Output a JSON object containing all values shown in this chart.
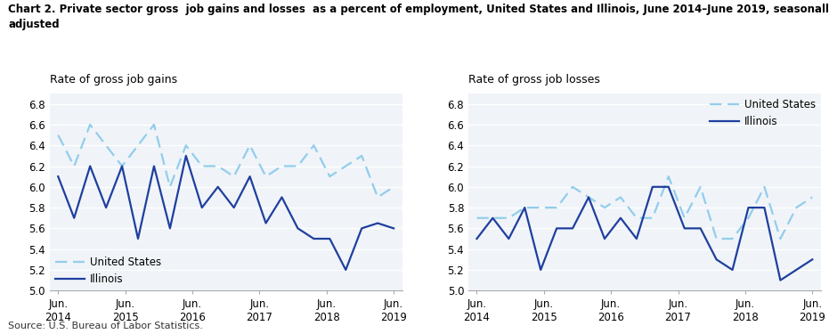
{
  "title_line1": "Chart 2. Private sector gross  job gains and losses  as a percent of employment, United States and Illinois, June 2014–June 2019, seasonally",
  "title_line2": "adjusted",
  "subtitle_left": "Rate of gross job gains",
  "subtitle_right": "Rate of gross job losses",
  "source": "Source: U.S. Bureau of Labor Statistics.",
  "x_labels": [
    "Jun.\n2014",
    "Jun.\n2015",
    "Jun.\n2016",
    "Jun.\n2017",
    "Jun.\n2018",
    "Jun.\n2019"
  ],
  "x_positions": [
    0,
    4,
    8,
    12,
    16,
    20
  ],
  "ylim": [
    5.0,
    6.9
  ],
  "yticks": [
    5.0,
    5.2,
    5.4,
    5.6,
    5.8,
    6.0,
    6.2,
    6.4,
    6.6,
    6.8
  ],
  "gains_us": [
    6.5,
    6.2,
    6.6,
    6.4,
    6.2,
    6.4,
    6.6,
    6.0,
    6.4,
    6.2,
    6.2,
    6.1,
    6.4,
    6.1,
    6.2,
    6.2,
    6.4,
    6.1,
    6.2,
    6.3,
    5.9,
    6.0
  ],
  "gains_il": [
    6.1,
    5.7,
    6.2,
    5.8,
    6.2,
    5.5,
    6.2,
    5.6,
    6.3,
    5.8,
    6.0,
    5.8,
    6.1,
    5.65,
    5.9,
    5.6,
    5.5,
    5.5,
    5.2,
    5.6,
    5.65,
    5.6
  ],
  "losses_us": [
    5.7,
    5.7,
    5.7,
    5.8,
    5.8,
    5.8,
    6.0,
    5.9,
    5.8,
    5.9,
    5.7,
    5.7,
    6.1,
    5.7,
    6.0,
    5.5,
    5.5,
    5.7,
    6.0,
    5.5,
    5.8,
    5.9
  ],
  "losses_il": [
    5.5,
    5.7,
    5.5,
    5.8,
    5.2,
    5.6,
    5.6,
    5.9,
    5.5,
    5.7,
    5.5,
    6.0,
    6.0,
    5.6,
    5.6,
    5.3,
    5.2,
    5.8,
    5.8,
    5.1,
    5.2,
    5.3
  ],
  "color_us": "#92CDEC",
  "color_il": "#1F3F9F",
  "lw": 1.6
}
